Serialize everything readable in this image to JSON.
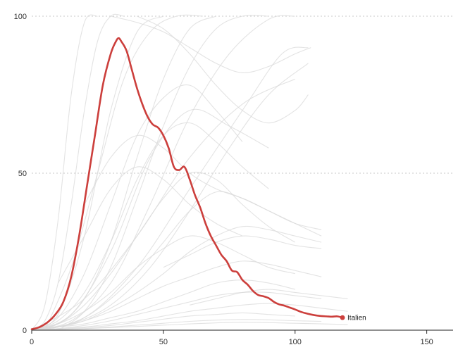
{
  "chart_data": {
    "type": "line",
    "title": "",
    "xlabel": "",
    "ylabel": "",
    "xlim": [
      0,
      160
    ],
    "ylim": [
      0,
      100
    ],
    "x_ticks": [
      "0",
      "50",
      "100",
      "150"
    ],
    "y_ticks": [
      "0",
      "50",
      "100"
    ],
    "grid": "horizontal dotted",
    "colors": {
      "highlight": "#cc3f3c",
      "background_series": "#d9d9d9",
      "grid": "#c8c8c8",
      "axis": "#222222"
    },
    "highlight_series": {
      "name": "Italien",
      "x": [
        0,
        3,
        6,
        9,
        12,
        15,
        18,
        21,
        24,
        27,
        30,
        32,
        33,
        34,
        36,
        38,
        40,
        42,
        44,
        46,
        48,
        50,
        52,
        54,
        56,
        58,
        60,
        62,
        64,
        66,
        68,
        70,
        72,
        74,
        76,
        78,
        80,
        82,
        84,
        86,
        88,
        90,
        92,
        94,
        96,
        98,
        100,
        102,
        104,
        106,
        108,
        110,
        112,
        114,
        116,
        118
      ],
      "y": [
        0.3,
        1.0,
        2.5,
        5,
        9,
        17,
        30,
        46,
        62,
        78,
        88,
        92,
        93,
        92,
        89,
        83,
        77,
        72,
        68,
        65.5,
        64.5,
        62,
        58,
        52,
        51,
        52,
        48,
        43,
        39,
        34,
        30,
        27,
        24,
        22,
        19,
        18.5,
        16,
        14.5,
        12.5,
        11.2,
        10.8,
        10.2,
        9,
        8.2,
        7.8,
        7.2,
        6.6,
        5.9,
        5.4,
        5.0,
        4.7,
        4.5,
        4.4,
        4.3,
        4.4,
        4.0
      ]
    },
    "background_series": [
      {
        "x": [
          0,
          5,
          10,
          15,
          20,
          25
        ],
        "y": [
          0,
          8,
          35,
          75,
          98,
          100
        ]
      },
      {
        "x": [
          0,
          5,
          10,
          15,
          20,
          25,
          30,
          35
        ],
        "y": [
          0,
          3,
          15,
          40,
          70,
          92,
          100,
          100
        ]
      },
      {
        "x": [
          0,
          10,
          20,
          30,
          40,
          50
        ],
        "y": [
          0,
          5,
          30,
          70,
          95,
          100
        ]
      },
      {
        "x": [
          0,
          10,
          20,
          30,
          40,
          50,
          60,
          70
        ],
        "y": [
          0,
          2,
          10,
          28,
          55,
          80,
          96,
          100
        ]
      },
      {
        "x": [
          0,
          15,
          30,
          45,
          60,
          75,
          90,
          100
        ],
        "y": [
          0,
          3,
          15,
          40,
          68,
          88,
          99,
          100
        ]
      },
      {
        "x": [
          0,
          20,
          40,
          60,
          80,
          95,
          105
        ],
        "y": [
          0,
          4,
          20,
          45,
          70,
          88,
          90
        ]
      },
      {
        "x": [
          0,
          10,
          20,
          30,
          40,
          50,
          60,
          70,
          80
        ],
        "y": [
          0,
          4,
          18,
          40,
          62,
          74,
          78,
          70,
          60
        ]
      },
      {
        "x": [
          0,
          10,
          20,
          30,
          40,
          50,
          60,
          70,
          80,
          90
        ],
        "y": [
          0,
          3,
          12,
          28,
          48,
          62,
          66,
          60,
          52,
          45
        ]
      },
      {
        "x": [
          0,
          15,
          30,
          45,
          60,
          75,
          90
        ],
        "y": [
          0,
          5,
          25,
          55,
          70,
          65,
          58
        ]
      },
      {
        "x": [
          0,
          10,
          20,
          30,
          40,
          50,
          60,
          70,
          80,
          90,
          100
        ],
        "y": [
          0,
          2,
          8,
          18,
          30,
          42,
          50,
          48,
          40,
          33,
          28
        ]
      },
      {
        "x": [
          0,
          10,
          20,
          30,
          40,
          50,
          60,
          70,
          80,
          90,
          100,
          110
        ],
        "y": [
          0,
          1,
          4,
          10,
          18,
          28,
          38,
          44,
          42,
          38,
          34,
          30
        ]
      },
      {
        "x": [
          0,
          10,
          20,
          30,
          40,
          50,
          60,
          70,
          80,
          90,
          100,
          110
        ],
        "y": [
          0,
          1,
          3,
          7,
          12,
          18,
          25,
          30,
          33,
          32,
          30,
          28
        ]
      },
      {
        "x": [
          0,
          10,
          20,
          30,
          40,
          50,
          60,
          70,
          80,
          90,
          100
        ],
        "y": [
          0,
          2,
          6,
          12,
          20,
          26,
          30,
          28,
          24,
          20,
          18
        ]
      },
      {
        "x": [
          0,
          10,
          20,
          30,
          40,
          50,
          60,
          70,
          80,
          90,
          100,
          110
        ],
        "y": [
          0,
          1,
          3,
          6,
          10,
          14,
          17,
          20,
          22,
          21,
          19,
          17
        ]
      },
      {
        "x": [
          0,
          10,
          20,
          30,
          40,
          50,
          60,
          70,
          80,
          90,
          100
        ],
        "y": [
          0,
          1,
          2,
          4,
          6,
          9,
          12,
          15,
          16,
          15,
          13
        ]
      },
      {
        "x": [
          0,
          10,
          20,
          30,
          40,
          50,
          60,
          70,
          80,
          90,
          100,
          110
        ],
        "y": [
          0,
          0.5,
          1.5,
          3,
          5,
          7,
          9,
          11,
          12,
          12,
          11,
          10
        ]
      },
      {
        "x": [
          0,
          10,
          20,
          30,
          40,
          50,
          60,
          70,
          80,
          90,
          100,
          110,
          120
        ],
        "y": [
          0,
          0.5,
          1,
          2,
          3,
          4.5,
          6,
          7,
          8,
          8.5,
          8,
          7,
          6
        ]
      },
      {
        "x": [
          0,
          10,
          20,
          30,
          40,
          50,
          60,
          70,
          80,
          90,
          100
        ],
        "y": [
          0,
          0.3,
          0.8,
          1.5,
          2.5,
          3.5,
          4.5,
          5,
          5.5,
          5,
          4.5
        ]
      },
      {
        "x": [
          0,
          10,
          20,
          30,
          40,
          50,
          60,
          70,
          80,
          90,
          100,
          110
        ],
        "y": [
          0,
          0.2,
          0.5,
          1,
          1.6,
          2.2,
          2.8,
          3.2,
          3.4,
          3.3,
          3,
          2.8
        ]
      },
      {
        "x": [
          0,
          20,
          40,
          60,
          80,
          100,
          120
        ],
        "y": [
          0,
          0.5,
          1.2,
          2,
          2.5,
          2.2,
          1.8
        ]
      },
      {
        "x": [
          30,
          40,
          50,
          60,
          70,
          80,
          90,
          100,
          106
        ],
        "y": [
          100,
          98,
          95,
          90,
          85,
          82,
          84,
          88,
          90
        ]
      },
      {
        "x": [
          40,
          50,
          60,
          70,
          80,
          90,
          100,
          105
        ],
        "y": [
          100,
          96,
          88,
          78,
          70,
          66,
          70,
          75
        ]
      },
      {
        "x": [
          20,
          30,
          40,
          50,
          60,
          70,
          80,
          90,
          100,
          110
        ],
        "y": [
          40,
          55,
          62,
          58,
          50,
          45,
          42,
          38,
          34,
          32
        ]
      },
      {
        "x": [
          10,
          20,
          30,
          40,
          50,
          60,
          70,
          80
        ],
        "y": [
          15,
          30,
          45,
          52,
          48,
          40,
          34,
          30
        ]
      },
      {
        "x": [
          50,
          60,
          70,
          80,
          90,
          100,
          110
        ],
        "y": [
          20,
          24,
          28,
          30,
          29,
          27,
          26
        ]
      },
      {
        "x": [
          60,
          70,
          80,
          90,
          100,
          110,
          120
        ],
        "y": [
          8,
          10,
          12,
          13,
          12,
          11,
          10
        ]
      },
      {
        "x": [
          0,
          20,
          40,
          60,
          80,
          100
        ],
        "y": [
          0,
          10,
          30,
          55,
          72,
          80
        ]
      },
      {
        "x": [
          5,
          15,
          25,
          35,
          45,
          55,
          65
        ],
        "y": [
          0,
          20,
          50,
          80,
          95,
          100,
          100
        ]
      },
      {
        "x": [
          10,
          20,
          30,
          40,
          50,
          60,
          70,
          80,
          90
        ],
        "y": [
          0,
          6,
          20,
          42,
          65,
          84,
          96,
          100,
          100
        ]
      },
      {
        "x": [
          0,
          15,
          30,
          45,
          60,
          75,
          90,
          105
        ],
        "y": [
          0,
          2,
          8,
          20,
          38,
          58,
          75,
          85
        ]
      }
    ],
    "annotations": [
      {
        "text": "Italien",
        "x": 118,
        "y": 4.0
      }
    ]
  }
}
